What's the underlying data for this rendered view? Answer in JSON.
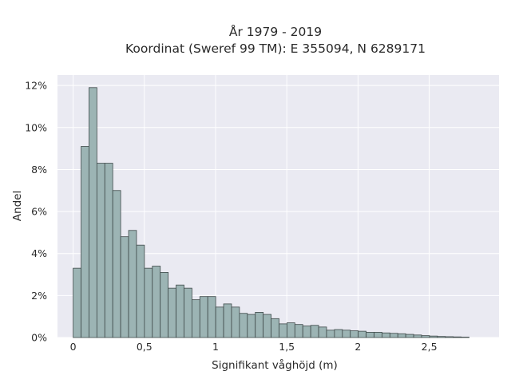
{
  "chart_data": {
    "type": "bar",
    "title_line1": "År 1979 - 2019",
    "title_line2": "Koordinat (Sweref 99 TM): E 355094, N 6289171",
    "xlabel": "Signifikant våghöjd (m)",
    "ylabel": "Andel",
    "xlim": [
      -0.11,
      2.99
    ],
    "ylim": [
      0,
      12.5
    ],
    "x_ticks": [
      {
        "value": 0,
        "label": "0"
      },
      {
        "value": 0.5,
        "label": "0,5"
      },
      {
        "value": 1,
        "label": "1"
      },
      {
        "value": 1.5,
        "label": "1,5"
      },
      {
        "value": 2,
        "label": "2"
      },
      {
        "value": 2.5,
        "label": "2,5"
      }
    ],
    "y_ticks": [
      {
        "value": 0,
        "label": "0%"
      },
      {
        "value": 2,
        "label": "2%"
      },
      {
        "value": 4,
        "label": "4%"
      },
      {
        "value": 6,
        "label": "6%"
      },
      {
        "value": 8,
        "label": "8%"
      },
      {
        "value": 10,
        "label": "10%"
      },
      {
        "value": 12,
        "label": "12%"
      }
    ],
    "bin_width": 0.0556,
    "bin_start": 0,
    "values": [
      3.3,
      9.1,
      11.9,
      8.3,
      8.3,
      7.0,
      4.8,
      5.1,
      4.4,
      3.3,
      3.4,
      3.1,
      2.35,
      2.5,
      2.35,
      1.8,
      1.95,
      1.95,
      1.45,
      1.6,
      1.45,
      1.15,
      1.1,
      1.2,
      1.1,
      0.9,
      0.65,
      0.7,
      0.62,
      0.55,
      0.58,
      0.5,
      0.35,
      0.38,
      0.35,
      0.32,
      0.3,
      0.25,
      0.25,
      0.22,
      0.2,
      0.18,
      0.15,
      0.12,
      0.09,
      0.07,
      0.05,
      0.04,
      0.03,
      0.02
    ],
    "grid": true,
    "colors": {
      "bar_fill": "#9cb4b4",
      "bar_edge": "#3f4a4a",
      "plot_background": "#eaeaf2",
      "grid": "#ffffff"
    }
  }
}
